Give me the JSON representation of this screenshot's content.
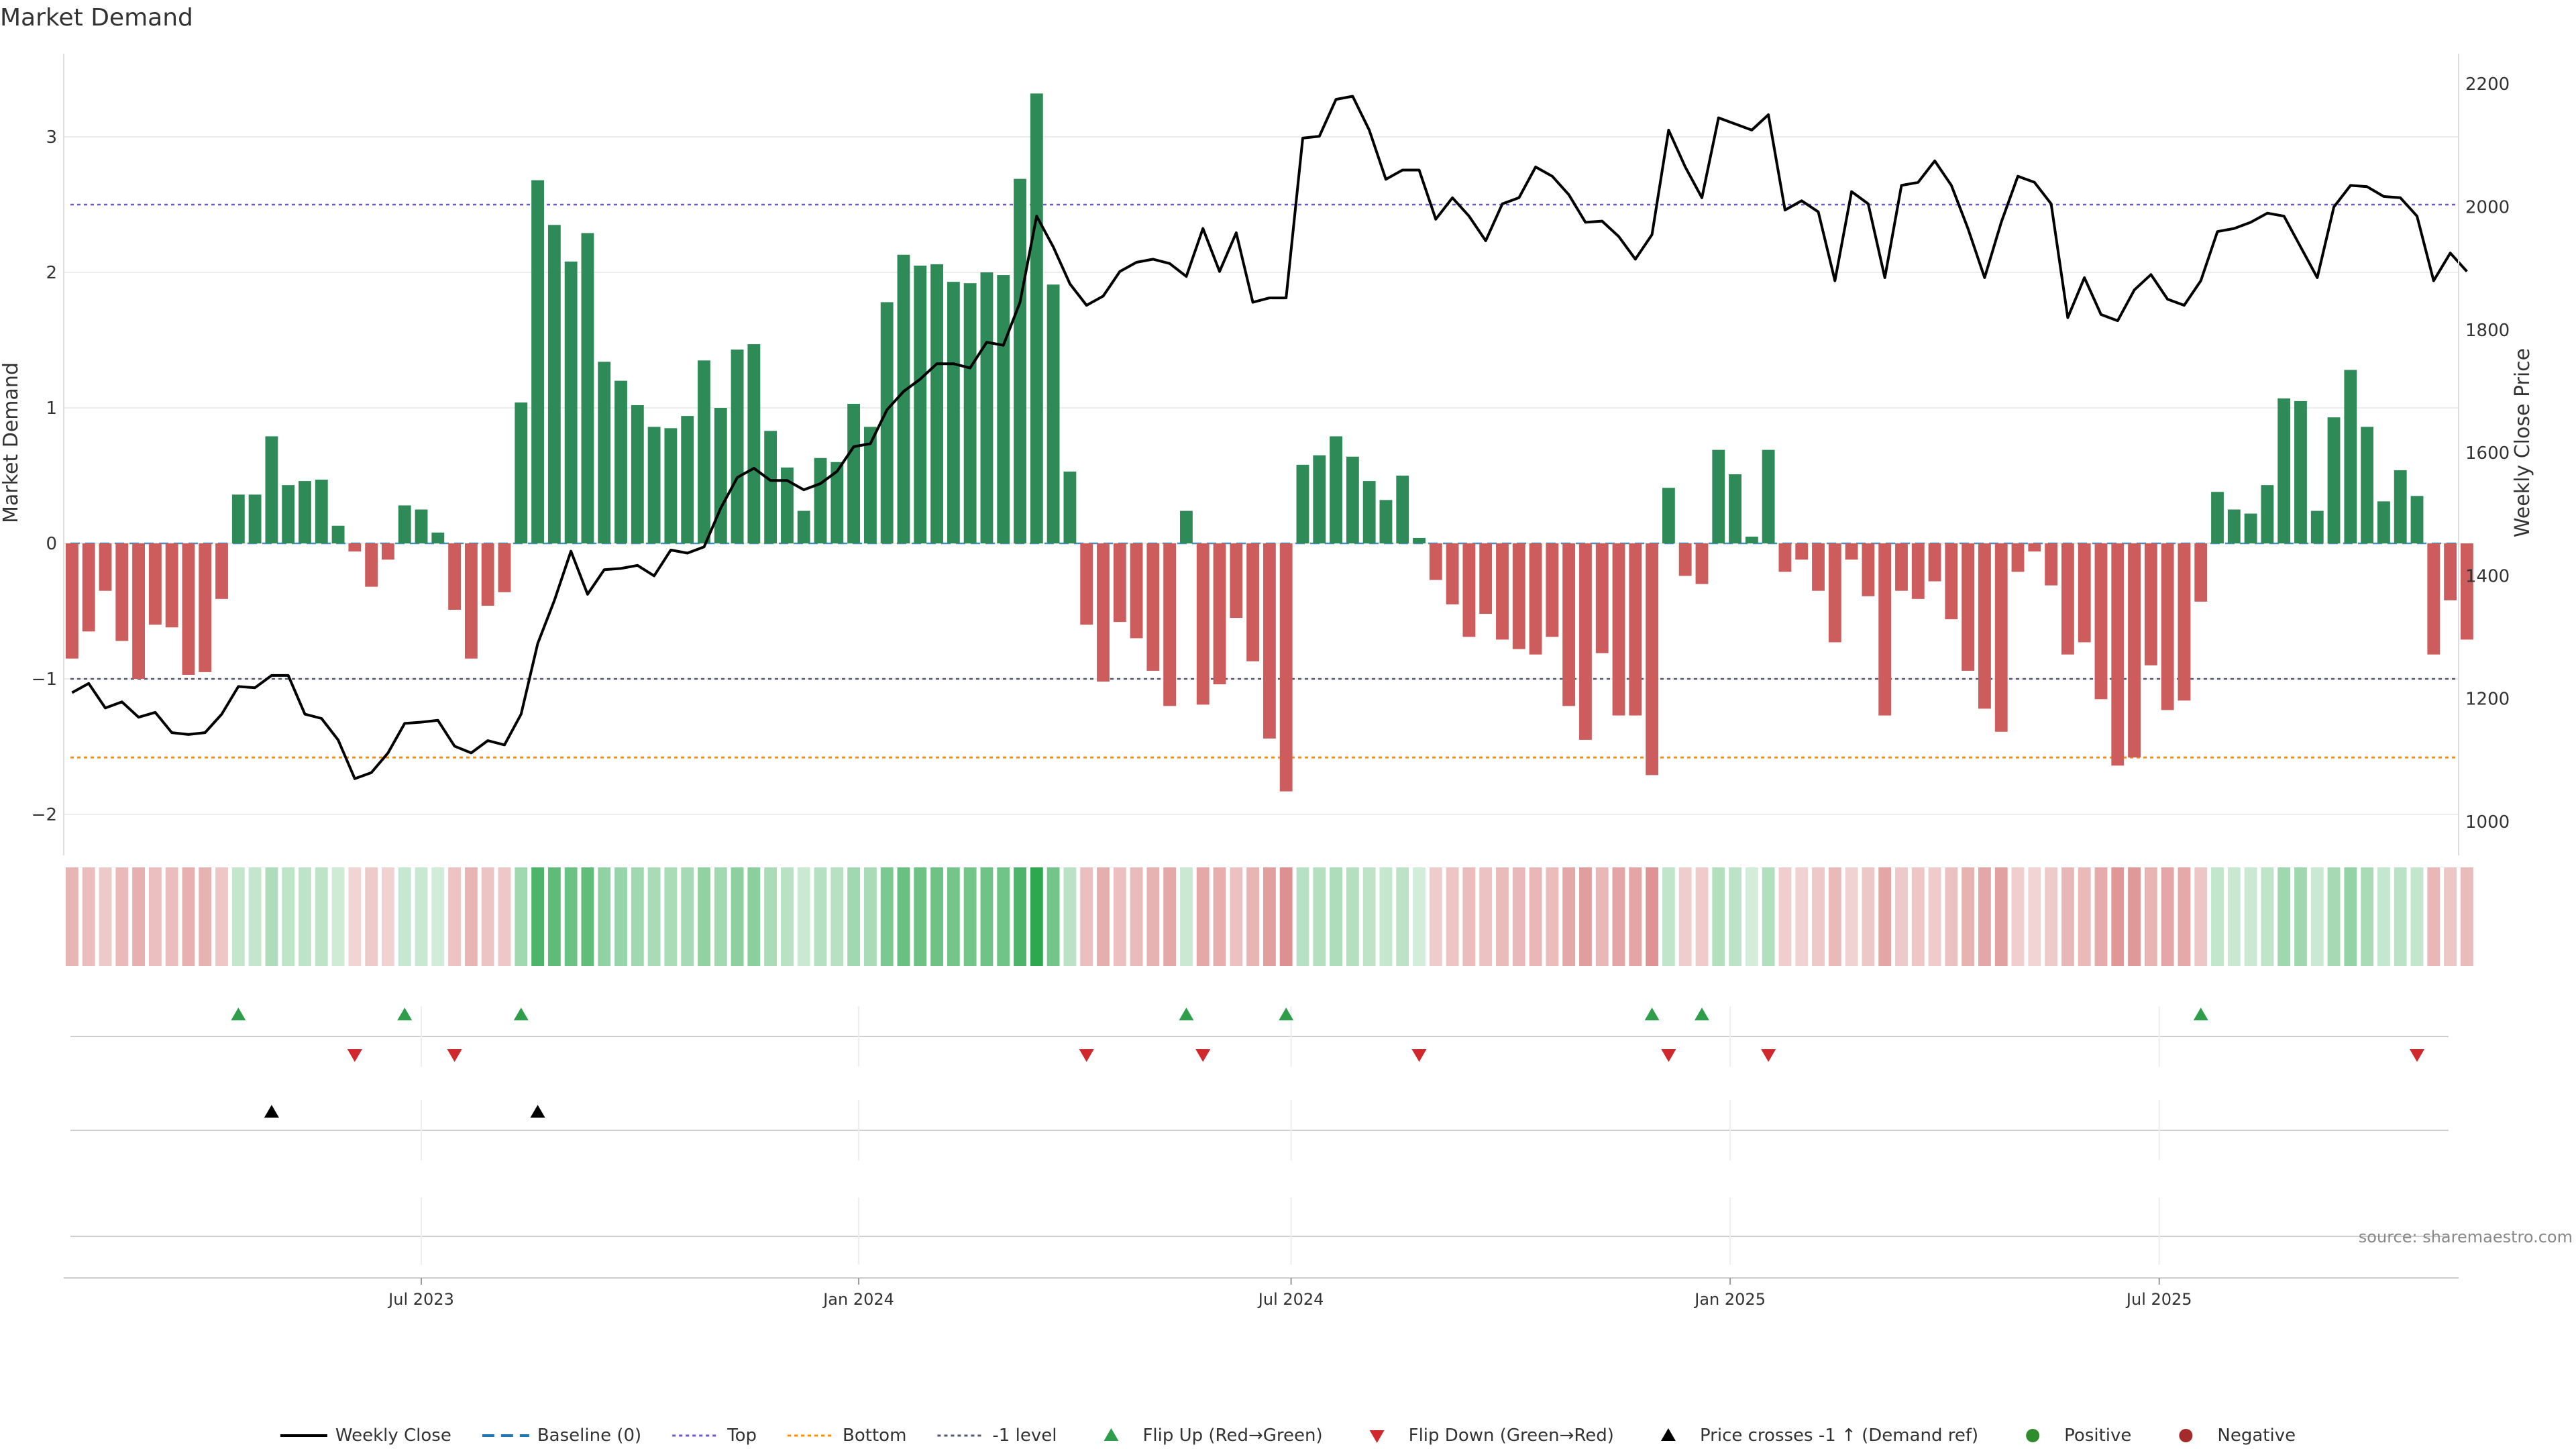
{
  "chart_data": {
    "type": "bar+line",
    "title": "Market Demand",
    "ylabel_left": "Market Demand",
    "ylabel_right": "Weekly Close Price",
    "ylim_left": [
      -2.3,
      3.55
    ],
    "ylim_right": [
      1000,
      2220
    ],
    "yticks_left": [
      -2,
      -1,
      0,
      1,
      2,
      3
    ],
    "yticks_left_labels": [
      "−2",
      "−1",
      "0",
      "1",
      "2",
      "3"
    ],
    "yticks_right": [
      1000,
      1200,
      1400,
      1600,
      1800,
      2000,
      2200
    ],
    "xticks": [
      {
        "label": "Jul 2023",
        "week": 21.5
      },
      {
        "label": "Jan 2024",
        "week": 47.8
      },
      {
        "label": "Jul 2024",
        "week": 73.8
      },
      {
        "label": "Jan 2025",
        "week": 100.2
      },
      {
        "label": "Jul 2025",
        "week": 126
      }
    ],
    "reference_lines": {
      "top": 2.5,
      "bottom": -1.58,
      "minus_one_level": -1.0,
      "baseline": 0
    },
    "weeks": 144,
    "demand": [
      -0.85,
      -0.65,
      -0.35,
      -0.72,
      -1.0,
      -0.6,
      -0.62,
      -0.97,
      -0.95,
      -0.41,
      0.36,
      0.36,
      0.79,
      0.43,
      0.46,
      0.47,
      0.13,
      -0.06,
      -0.32,
      -0.12,
      0.28,
      0.25,
      0.08,
      -0.49,
      -0.85,
      -0.46,
      -0.36,
      1.04,
      2.68,
      2.35,
      2.08,
      2.29,
      1.34,
      1.2,
      1.02,
      0.86,
      0.85,
      0.94,
      1.35,
      1.0,
      1.43,
      1.47,
      0.83,
      0.56,
      0.24,
      0.63,
      0.6,
      1.03,
      0.86,
      1.78,
      2.13,
      2.05,
      2.06,
      1.93,
      1.92,
      2.0,
      1.98,
      2.69,
      3.32,
      1.91,
      0.53,
      -0.6,
      -1.02,
      -0.58,
      -0.7,
      -0.94,
      -1.2,
      0.24,
      -1.19,
      -1.04,
      -0.55,
      -0.87,
      -1.44,
      -1.83,
      0.58,
      0.65,
      0.79,
      0.64,
      0.46,
      0.32,
      0.5,
      0.04,
      -0.27,
      -0.45,
      -0.69,
      -0.52,
      -0.71,
      -0.78,
      -0.82,
      -0.69,
      -1.2,
      -1.45,
      -0.81,
      -1.27,
      -1.27,
      -1.71,
      0.41,
      -0.24,
      -0.3,
      0.69,
      0.51,
      0.05,
      0.69,
      -0.21,
      -0.12,
      -0.35,
      -0.73,
      -0.12,
      -0.39,
      -1.27,
      -0.35,
      -0.41,
      -0.28,
      -0.56,
      -0.94,
      -1.22,
      -1.39,
      -0.21,
      -0.06,
      -0.31,
      -0.82,
      -0.73,
      -1.15,
      -1.64,
      -1.58,
      -0.9,
      -1.23,
      -1.16,
      -0.43,
      0.38,
      0.25,
      0.22,
      0.43,
      1.07,
      1.05,
      0.24,
      0.93,
      1.28,
      0.86,
      0.31,
      0.54,
      0.35,
      -0.82,
      -0.42,
      -0.71
    ],
    "close": [
      1210,
      1225,
      1185,
      1195,
      1170,
      1178,
      1145,
      1142,
      1145,
      1175,
      1220,
      1218,
      1238,
      1238,
      1175,
      1168,
      1133,
      1070,
      1080,
      1112,
      1160,
      1162,
      1165,
      1123,
      1112,
      1132,
      1125,
      1175,
      1290,
      1360,
      1440,
      1370,
      1410,
      1412,
      1417,
      1400,
      1442,
      1437,
      1447,
      1510,
      1560,
      1575,
      1555,
      1555,
      1540,
      1550,
      1570,
      1610,
      1615,
      1670,
      1700,
      1720,
      1745,
      1745,
      1738,
      1780,
      1775,
      1845,
      1985,
      1935,
      1875,
      1840,
      1855,
      1895,
      1910,
      1915,
      1908,
      1887,
      1965,
      1895,
      1958,
      1845,
      1852,
      1852,
      2112,
      2115,
      2175,
      2180,
      2125,
      2045,
      2060,
      2060,
      1980,
      2015,
      1985,
      1945,
      2005,
      2015,
      2065,
      2050,
      2020,
      1975,
      1977,
      1952,
      1915,
      1955,
      2125,
      2065,
      2015,
      2145,
      2135,
      2125,
      2150,
      1995,
      2010,
      1992,
      1880,
      2025,
      2005,
      1885,
      2035,
      2040,
      2075,
      2035,
      1965,
      1885,
      1975,
      2050,
      2040,
      2005,
      1820,
      1885,
      1825,
      1815,
      1865,
      1890,
      1850,
      1840,
      1880,
      1960,
      1965,
      1975,
      1990,
      1985,
      1935,
      1885,
      2000,
      2035,
      2033,
      2017,
      2015,
      1985,
      1880,
      1925,
      1895
    ],
    "strength_strip_label": "",
    "flip_up_weeks": [
      10,
      20,
      27,
      67,
      73,
      95,
      98,
      128
    ],
    "flip_down_weeks": [
      17,
      23,
      61,
      68,
      81,
      96,
      102,
      141
    ],
    "price_cross_weeks": [
      12,
      28
    ],
    "legend": [
      {
        "label": "Weekly Close",
        "type": "line",
        "color": "#000000"
      },
      {
        "label": "Baseline (0)",
        "type": "dash",
        "color": "#1f77b4"
      },
      {
        "label": "Top",
        "type": "dot",
        "color": "#6a5acd"
      },
      {
        "label": "Bottom",
        "type": "dot",
        "color": "#ff8c00"
      },
      {
        "label": "-1 level",
        "type": "dot",
        "color": "#555577"
      },
      {
        "label": "Flip Up (Red→Green)",
        "type": "tri-up",
        "color": "#2e9e4a"
      },
      {
        "label": "Flip Down (Green→Red)",
        "type": "tri-down",
        "color": "#d0282d"
      },
      {
        "label": "Price crosses -1 ↑ (Demand ref)",
        "type": "tri-up",
        "color": "#000000"
      },
      {
        "label": "Positive",
        "type": "dot-marker",
        "color": "#2e8b2e"
      },
      {
        "label": "Negative",
        "type": "dot-marker",
        "color": "#a52a2a"
      }
    ],
    "source": "source: sharemaestro.com"
  },
  "colors": {
    "positive_bar": "#2e8b57",
    "negative_bar": "#cd5c5c",
    "grid": "#ececec"
  }
}
